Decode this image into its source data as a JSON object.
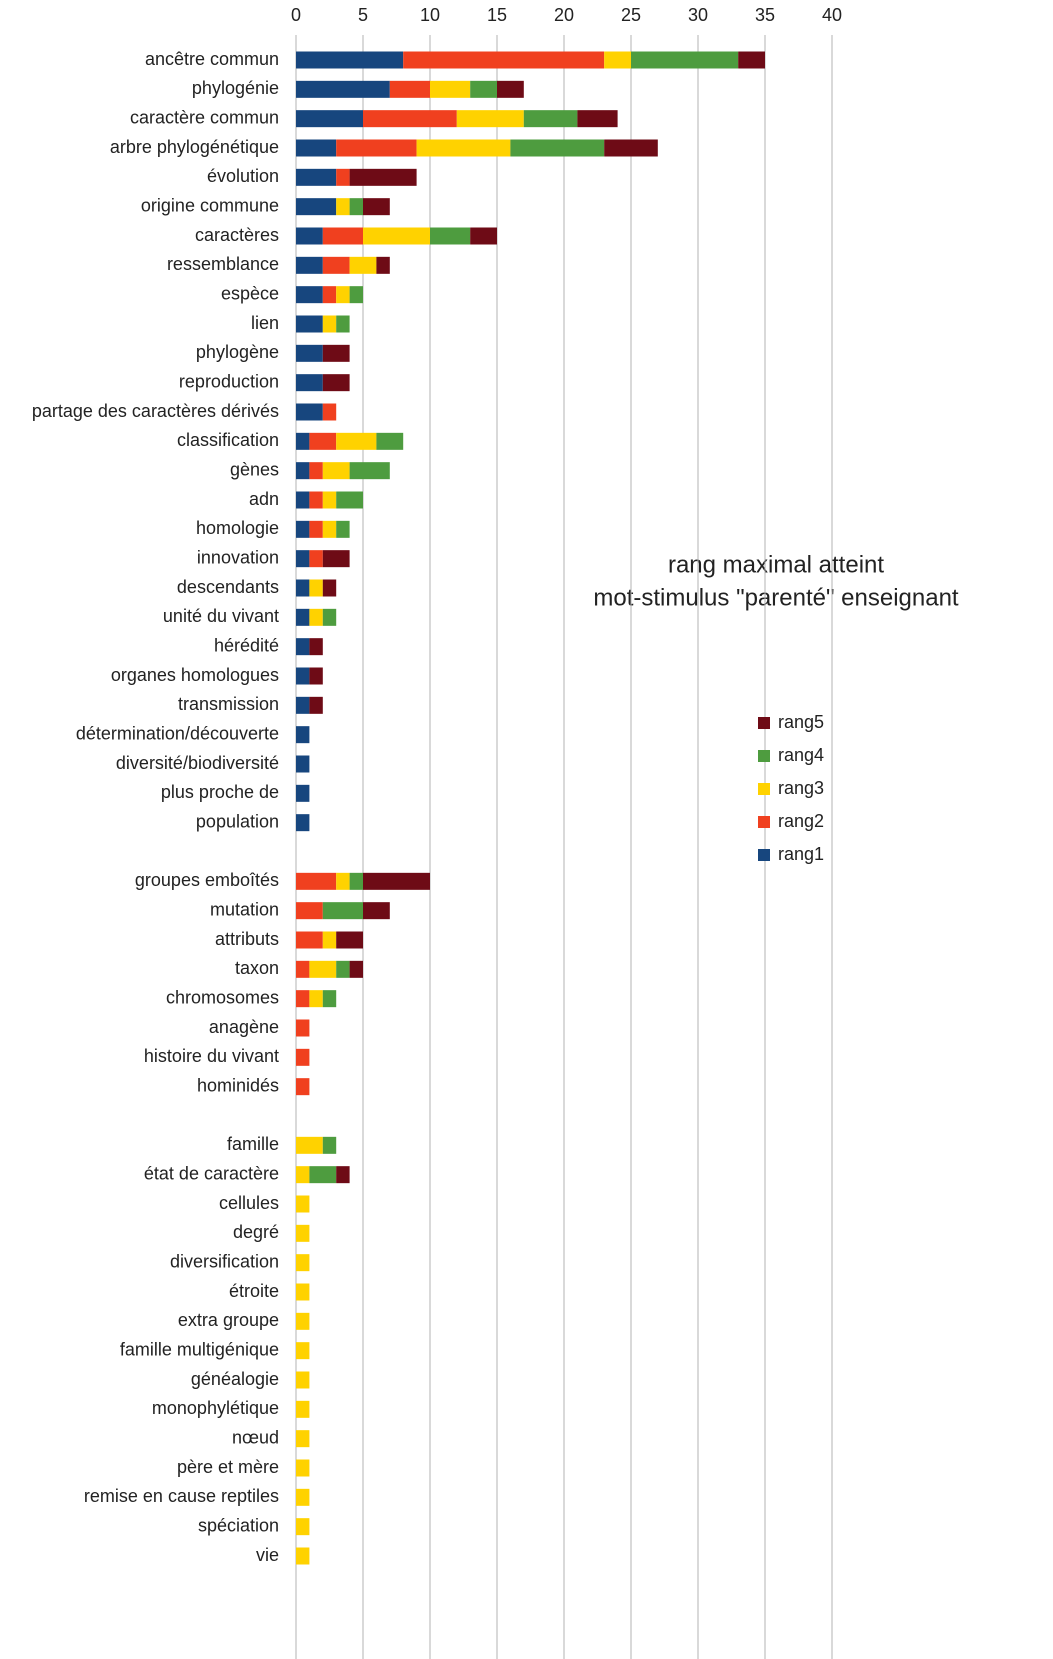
{
  "chart_data": {
    "type": "stacked_barh",
    "title": "rang maximal atteint",
    "subtitle": "mot-stimulus \"parenté\" enseignant",
    "categories": [
      "ancêtre commun",
      "phylogénie",
      "caractère commun",
      "arbre phylogénétique",
      "évolution",
      "origine commune",
      "caractères",
      "ressemblance",
      "espèce",
      "lien",
      "phylogène",
      "reproduction",
      "partage des caractères dérivés",
      "classification",
      "gènes",
      "adn",
      "homologie",
      "innovation",
      "descendants",
      "unité du vivant",
      "hérédité",
      "organes homologues",
      "transmission",
      "détermination/découverte",
      "diversité/biodiversité",
      "plus proche de",
      "population",
      null,
      "groupes emboîtés",
      "mutation",
      "attributs",
      "taxon",
      "chromosomes",
      "anagène",
      "histoire du vivant",
      "hominidés",
      null,
      "famille",
      "état de caractère",
      "cellules",
      "degré",
      "diversification",
      "étroite",
      "extra groupe",
      "famille multigénique",
      "généalogie",
      "monophylétique",
      "nœud",
      "père et mère",
      "remise en cause reptiles",
      "spéciation",
      "vie"
    ],
    "series": [
      {
        "name": "rang1",
        "color": "#17467e",
        "values": [
          8,
          7,
          5,
          3,
          3,
          3,
          2,
          2,
          2,
          2,
          2,
          2,
          2,
          1,
          1,
          1,
          1,
          1,
          1,
          1,
          1,
          1,
          1,
          1,
          1,
          1,
          1,
          null,
          0,
          0,
          0,
          0,
          0,
          0,
          0,
          0,
          null,
          0,
          0,
          0,
          0,
          0,
          0,
          0,
          0,
          0,
          0,
          0,
          0,
          0,
          0,
          0
        ]
      },
      {
        "name": "rang2",
        "color": "#f0401f",
        "values": [
          15,
          3,
          7,
          6,
          1,
          0,
          3,
          2,
          1,
          0,
          0,
          0,
          1,
          2,
          1,
          1,
          1,
          1,
          0,
          0,
          0,
          0,
          0,
          0,
          0,
          0,
          0,
          null,
          3,
          2,
          2,
          1,
          1,
          1,
          1,
          1,
          null,
          0,
          0,
          0,
          0,
          0,
          0,
          0,
          0,
          0,
          0,
          0,
          0,
          0,
          0,
          0
        ]
      },
      {
        "name": "rang3",
        "color": "#ffd200",
        "values": [
          2,
          3,
          5,
          7,
          0,
          1,
          5,
          2,
          1,
          1,
          0,
          0,
          0,
          3,
          2,
          1,
          1,
          0,
          1,
          1,
          0,
          0,
          0,
          0,
          0,
          0,
          0,
          null,
          1,
          0,
          1,
          2,
          1,
          0,
          0,
          0,
          null,
          2,
          1,
          1,
          1,
          1,
          1,
          1,
          1,
          1,
          1,
          1,
          1,
          1,
          1,
          1
        ]
      },
      {
        "name": "rang4",
        "color": "#4e9c3f",
        "values": [
          8,
          2,
          4,
          7,
          0,
          1,
          3,
          0,
          1,
          1,
          0,
          0,
          0,
          2,
          3,
          2,
          1,
          0,
          0,
          1,
          0,
          0,
          0,
          0,
          0,
          0,
          0,
          null,
          1,
          3,
          0,
          1,
          1,
          0,
          0,
          0,
          null,
          1,
          2,
          0,
          0,
          0,
          0,
          0,
          0,
          0,
          0,
          0,
          0,
          0,
          0,
          0
        ]
      },
      {
        "name": "rang5",
        "color": "#6e0b16",
        "values": [
          2,
          2,
          3,
          4,
          5,
          2,
          2,
          1,
          0,
          0,
          2,
          2,
          0,
          0,
          0,
          0,
          0,
          2,
          1,
          0,
          1,
          1,
          1,
          0,
          0,
          0,
          0,
          null,
          5,
          2,
          2,
          1,
          0,
          0,
          0,
          0,
          null,
          0,
          1,
          0,
          0,
          0,
          0,
          0,
          0,
          0,
          0,
          0,
          0,
          0,
          0,
          0
        ]
      }
    ],
    "xlim": [
      0,
      40
    ],
    "xticks": [
      0,
      5,
      10,
      15,
      20,
      25,
      30,
      35,
      40
    ],
    "grid": true,
    "legend": "right"
  }
}
